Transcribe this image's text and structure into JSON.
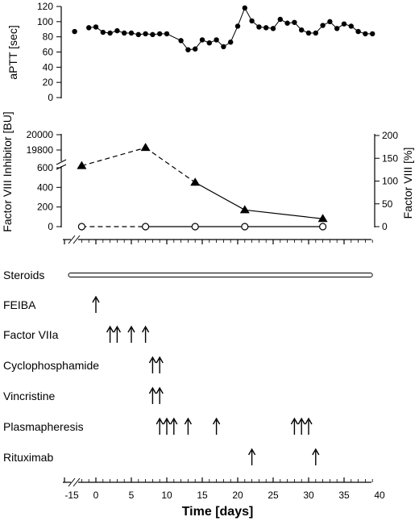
{
  "chart_data": [
    {
      "type": "line",
      "panel": "aptt",
      "ylabel": "aPTT [sec]",
      "ylim": [
        0,
        120
      ],
      "yticks": [
        0,
        20,
        40,
        60,
        80,
        100,
        120
      ],
      "series": [
        {
          "marker": "filled-circle",
          "x": [
            -3,
            -1,
            0,
            1,
            2,
            3,
            4,
            5,
            6,
            7,
            8,
            9,
            10,
            12,
            13,
            14,
            15,
            16,
            17,
            18,
            19,
            20,
            21,
            22,
            23,
            24,
            25,
            26,
            27,
            28,
            29,
            30,
            31,
            32,
            33,
            34,
            35,
            36,
            37,
            38,
            39
          ],
          "y": [
            87,
            92,
            93,
            86,
            85,
            88,
            85,
            85,
            83,
            84,
            83,
            84,
            84,
            75,
            63,
            64,
            76,
            72,
            76,
            67,
            73,
            94,
            118,
            101,
            93,
            92,
            91,
            103,
            98,
            99,
            89,
            85,
            85,
            95,
            100,
            91,
            97,
            94,
            87,
            84,
            84
          ]
        }
      ]
    },
    {
      "type": "line",
      "panel": "inhibitor",
      "ylabel": "Factor VIII Inhibitor [BU]",
      "y2label": "Factor VIII [%]",
      "yticks": [
        0,
        200,
        400,
        600,
        19800,
        20000
      ],
      "y2lim": [
        0,
        200
      ],
      "y2ticks": [
        0,
        50,
        100,
        150,
        200
      ],
      "series": [
        {
          "marker": "filled-triangle",
          "axis": "left",
          "x": [
            -2,
            7,
            14,
            21,
            32
          ],
          "y": [
            620,
            19830,
            450,
            170,
            80
          ],
          "segment_styles": [
            "dashed",
            "dashed",
            "solid",
            "solid"
          ]
        },
        {
          "marker": "open-circle",
          "axis": "right",
          "x": [
            -2,
            7,
            14,
            21,
            32
          ],
          "y": [
            0,
            0,
            0,
            0,
            0
          ],
          "segment_styles": [
            "dashed",
            "solid",
            "solid",
            "solid"
          ]
        }
      ]
    },
    {
      "type": "timeline",
      "panel": "treatments",
      "rows": [
        {
          "label": "Steroids",
          "kind": "bar",
          "range": [
            -15,
            39
          ]
        },
        {
          "label": "FEIBA",
          "kind": "arrows",
          "days": [
            0
          ]
        },
        {
          "label": "Factor VIIa",
          "kind": "arrows",
          "days": [
            2,
            3,
            5,
            7
          ]
        },
        {
          "label": "Cyclophosphamide",
          "kind": "arrows",
          "days": [
            8,
            9
          ]
        },
        {
          "label": "Vincristine",
          "kind": "arrows",
          "days": [
            8,
            9
          ]
        },
        {
          "label": "Plasmapheresis",
          "kind": "arrows",
          "days": [
            9,
            10,
            11,
            13,
            17,
            28,
            29,
            30
          ]
        },
        {
          "label": "Rituximab",
          "kind": "arrows",
          "days": [
            22,
            31
          ]
        }
      ],
      "xlabel": "Time [days]",
      "xlim": [
        -15,
        40
      ],
      "xticks": [
        -15,
        0,
        5,
        10,
        15,
        20,
        25,
        30,
        35,
        40
      ],
      "xtick_labels": [
        "-15",
        "0",
        "5",
        "10",
        "15",
        "20",
        "25",
        "30",
        "35",
        "40"
      ]
    }
  ]
}
